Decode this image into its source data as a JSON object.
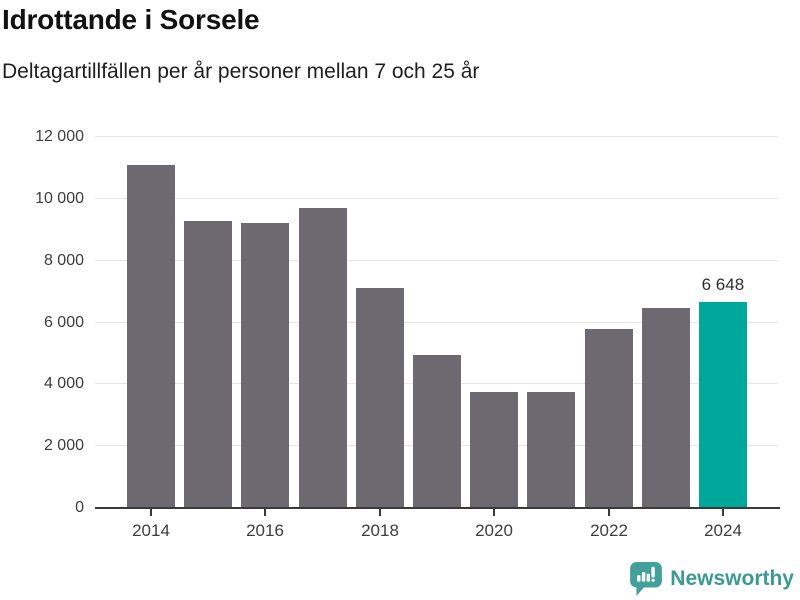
{
  "header": {
    "title": "Idrottande i Sorsele",
    "subtitle": "Deltagartillfällen per år personer mellan 7 och 25 år"
  },
  "chart_data": {
    "type": "bar",
    "title": "Idrottande i Sorsele",
    "subtitle": "Deltagartillfällen per år personer mellan 7 och 25 år",
    "categories": [
      "2014",
      "2015",
      "2016",
      "2017",
      "2018",
      "2019",
      "2020",
      "2021",
      "2022",
      "2023",
      "2024"
    ],
    "values": [
      11100,
      9270,
      9210,
      9720,
      7130,
      4940,
      3760,
      3760,
      5790,
      6460,
      6648
    ],
    "highlight": {
      "index": 10,
      "category": "2024",
      "value": 6648,
      "label": "6 648"
    },
    "ylim": [
      0,
      12000
    ],
    "y_ticks": [
      {
        "value": 0,
        "label": "0"
      },
      {
        "value": 2000,
        "label": "2 000"
      },
      {
        "value": 4000,
        "label": "4 000"
      },
      {
        "value": 6000,
        "label": "6 000"
      },
      {
        "value": 8000,
        "label": "8 000"
      },
      {
        "value": 10000,
        "label": "10 000"
      },
      {
        "value": 12000,
        "label": "12 000"
      }
    ],
    "x_tick_labels": [
      "2014",
      "2016",
      "2018",
      "2020",
      "2022",
      "2024"
    ],
    "x_ticks_every": 2,
    "grid": true,
    "legend": "none",
    "colors": {
      "bar": "#6c6970",
      "highlight": "#00a79b",
      "gridline": "#e7e7e7",
      "axis": "#3a3a3a",
      "tick_label": "#3d3d3d",
      "value_label": "#2e2e2e"
    }
  },
  "footer": {
    "brand": "Newsworthy",
    "logo_icon": "newsworthy-speech-bubble-bar-chart-icon",
    "brand_color": "#3b9a94",
    "logo_color": "#43a09a"
  }
}
